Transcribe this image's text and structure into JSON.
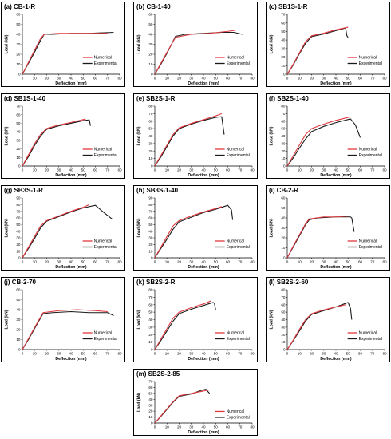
{
  "common": {
    "xlabel": "Deflection (mm)",
    "ylabel": "Load (kN)",
    "xticks": [
      0,
      10,
      20,
      30,
      40,
      50,
      60,
      70,
      80
    ],
    "legend": [
      "Numerical",
      "Experimental"
    ],
    "colors": {
      "numerical": "#e0393e",
      "experimental": "#1a1a1a"
    }
  },
  "chart_data": [
    {
      "title": "(a) CB-1-R",
      "type": "line",
      "xlim": [
        0,
        80
      ],
      "ylim": [
        0,
        60
      ],
      "yticks": [
        0,
        10,
        20,
        30,
        40,
        50,
        60
      ],
      "series": [
        {
          "name": "Numerical",
          "x": [
            0,
            5,
            10,
            15,
            18,
            30,
            45,
            60,
            70
          ],
          "y": [
            0,
            12,
            24,
            36,
            40,
            41,
            41,
            41,
            41
          ]
        },
        {
          "name": "Experimental",
          "x": [
            0,
            5,
            10,
            15,
            18,
            25,
            40,
            55,
            75
          ],
          "y": [
            0,
            11,
            22,
            34,
            40,
            40,
            41,
            41,
            42
          ]
        }
      ]
    },
    {
      "title": "(b) CB-1-40",
      "type": "line",
      "xlim": [
        0,
        80
      ],
      "ylim": [
        0,
        60
      ],
      "yticks": [
        0,
        10,
        20,
        30,
        40,
        50,
        60
      ],
      "series": [
        {
          "name": "Numerical",
          "x": [
            0,
            5,
            10,
            17,
            30,
            45,
            60,
            66
          ],
          "y": [
            0,
            11,
            22,
            37,
            40,
            41,
            43,
            44
          ]
        },
        {
          "name": "Experimental",
          "x": [
            0,
            5,
            10,
            17,
            25,
            40,
            55,
            65,
            72
          ],
          "y": [
            0,
            10,
            21,
            38,
            40,
            41,
            42,
            42,
            40
          ]
        }
      ]
    },
    {
      "title": "(c) SB1S-1-R",
      "type": "line",
      "xlim": [
        0,
        80
      ],
      "ylim": [
        0,
        70
      ],
      "yticks": [
        0,
        10,
        20,
        30,
        40,
        50,
        60,
        70
      ],
      "series": [
        {
          "name": "Numerical",
          "x": [
            0,
            5,
            10,
            15,
            20,
            30,
            40,
            50
          ],
          "y": [
            0,
            12,
            25,
            38,
            45,
            48,
            52,
            55
          ]
        },
        {
          "name": "Experimental",
          "x": [
            0,
            5,
            10,
            15,
            20,
            30,
            40,
            48,
            49,
            50
          ],
          "y": [
            0,
            11,
            24,
            36,
            44,
            47,
            51,
            54,
            45,
            43
          ]
        }
      ]
    },
    {
      "title": "(d) SB1S-1-40",
      "type": "line",
      "xlim": [
        0,
        80
      ],
      "ylim": [
        0,
        70
      ],
      "yticks": [
        0,
        10,
        20,
        30,
        40,
        50,
        60,
        70
      ],
      "series": [
        {
          "name": "Numerical",
          "x": [
            0,
            5,
            10,
            15,
            20,
            30,
            40,
            52
          ],
          "y": [
            0,
            13,
            26,
            37,
            44,
            48,
            51,
            55
          ]
        },
        {
          "name": "Experimental",
          "x": [
            0,
            5,
            10,
            15,
            20,
            30,
            40,
            50,
            55,
            56
          ],
          "y": [
            0,
            11,
            24,
            35,
            43,
            47,
            50,
            53,
            54,
            47
          ]
        }
      ]
    },
    {
      "title": "(e) SB2S-1-R",
      "type": "line",
      "xlim": [
        0,
        80
      ],
      "ylim": [
        0,
        80
      ],
      "yticks": [
        0,
        10,
        20,
        30,
        40,
        50,
        60,
        70,
        80
      ],
      "series": [
        {
          "name": "Numerical",
          "x": [
            0,
            5,
            10,
            15,
            20,
            30,
            40,
            50,
            55
          ],
          "y": [
            0,
            14,
            28,
            42,
            51,
            57,
            62,
            67,
            70
          ]
        },
        {
          "name": "Experimental",
          "x": [
            0,
            5,
            10,
            15,
            20,
            30,
            40,
            50,
            55,
            57
          ],
          "y": [
            0,
            12,
            26,
            40,
            50,
            56,
            61,
            65,
            66,
            42
          ]
        }
      ]
    },
    {
      "title": "(f) SB2S-1-40",
      "type": "line",
      "xlim": [
        0,
        80
      ],
      "ylim": [
        0,
        80
      ],
      "yticks": [
        0,
        10,
        20,
        30,
        40,
        50,
        60,
        70,
        80
      ],
      "series": [
        {
          "name": "Numerical",
          "x": [
            0,
            5,
            10,
            15,
            20,
            30,
            40,
            50,
            52
          ],
          "y": [
            0,
            14,
            28,
            42,
            50,
            56,
            61,
            65,
            66
          ]
        },
        {
          "name": "Experimental",
          "x": [
            0,
            5,
            10,
            15,
            20,
            30,
            40,
            52,
            56,
            60
          ],
          "y": [
            0,
            11,
            24,
            36,
            46,
            53,
            58,
            63,
            55,
            38
          ]
        }
      ]
    },
    {
      "title": "(g) SB3S-1-R",
      "type": "line",
      "xlim": [
        0,
        80
      ],
      "ylim": [
        0,
        90
      ],
      "yticks": [
        0,
        10,
        20,
        30,
        40,
        50,
        60,
        70,
        80,
        90
      ],
      "series": [
        {
          "name": "Numerical",
          "x": [
            0,
            5,
            10,
            15,
            20,
            30,
            40,
            50,
            55
          ],
          "y": [
            0,
            16,
            32,
            48,
            56,
            63,
            70,
            76,
            80
          ]
        },
        {
          "name": "Experimental",
          "x": [
            0,
            5,
            10,
            15,
            20,
            30,
            40,
            50,
            60,
            67,
            74
          ],
          "y": [
            0,
            14,
            29,
            45,
            55,
            62,
            69,
            75,
            79,
            68,
            58
          ]
        }
      ]
    },
    {
      "title": "(h) SB3S-1-40",
      "type": "line",
      "xlim": [
        0,
        80
      ],
      "ylim": [
        0,
        90
      ],
      "yticks": [
        0,
        10,
        20,
        30,
        40,
        50,
        60,
        70,
        80,
        90
      ],
      "series": [
        {
          "name": "Numerical",
          "x": [
            0,
            5,
            10,
            15,
            20,
            30,
            40,
            50,
            55
          ],
          "y": [
            0,
            16,
            32,
            48,
            56,
            63,
            69,
            74,
            77
          ]
        },
        {
          "name": "Experimental",
          "x": [
            0,
            5,
            10,
            15,
            20,
            30,
            40,
            50,
            60,
            63,
            64
          ],
          "y": [
            0,
            14,
            28,
            43,
            54,
            61,
            68,
            73,
            79,
            72,
            57
          ]
        }
      ]
    },
    {
      "title": "(i) CB-2-R",
      "type": "line",
      "xlim": [
        0,
        80
      ],
      "ylim": [
        0,
        60
      ],
      "yticks": [
        0,
        10,
        20,
        30,
        40,
        50,
        60
      ],
      "series": [
        {
          "name": "Numerical",
          "x": [
            0,
            5,
            10,
            15,
            18,
            30,
            40,
            52
          ],
          "y": [
            0,
            12,
            23,
            34,
            39,
            41,
            41,
            42
          ]
        },
        {
          "name": "Experimental",
          "x": [
            0,
            5,
            10,
            15,
            18,
            25,
            40,
            52,
            53,
            55
          ],
          "y": [
            0,
            11,
            22,
            33,
            38,
            40,
            41,
            41,
            40,
            26
          ]
        }
      ]
    },
    {
      "title": "(j) CB-2-70",
      "type": "line",
      "xlim": [
        0,
        80
      ],
      "ylim": [
        0,
        60
      ],
      "yticks": [
        0,
        10,
        20,
        30,
        40,
        50,
        60
      ],
      "series": [
        {
          "name": "Numerical",
          "x": [
            0,
            5,
            10,
            17,
            30,
            45,
            60,
            70
          ],
          "y": [
            0,
            11,
            22,
            37,
            39,
            40,
            39,
            38
          ]
        },
        {
          "name": "Experimental",
          "x": [
            0,
            5,
            10,
            17,
            25,
            40,
            55,
            70,
            75
          ],
          "y": [
            0,
            10,
            21,
            36,
            37,
            38,
            37,
            37,
            34
          ]
        }
      ]
    },
    {
      "title": "(k) SB2S-2-R",
      "type": "line",
      "xlim": [
        0,
        80
      ],
      "ylim": [
        0,
        80
      ],
      "yticks": [
        0,
        10,
        20,
        30,
        40,
        50,
        60,
        70,
        80
      ],
      "series": [
        {
          "name": "Numerical",
          "x": [
            0,
            5,
            10,
            15,
            20,
            30,
            40,
            46
          ],
          "y": [
            0,
            14,
            28,
            42,
            50,
            56,
            61,
            65
          ]
        },
        {
          "name": "Experimental",
          "x": [
            0,
            5,
            10,
            15,
            20,
            30,
            40,
            48,
            49,
            50
          ],
          "y": [
            0,
            12,
            25,
            38,
            48,
            54,
            59,
            63,
            62,
            53
          ]
        }
      ]
    },
    {
      "title": "(l) SB2S-2-60",
      "type": "line",
      "xlim": [
        0,
        80
      ],
      "ylim": [
        0,
        80
      ],
      "yticks": [
        0,
        10,
        20,
        30,
        40,
        50,
        60,
        70,
        80
      ],
      "series": [
        {
          "name": "Numerical",
          "x": [
            0,
            5,
            10,
            15,
            20,
            30,
            40,
            48
          ],
          "y": [
            0,
            13,
            27,
            40,
            48,
            53,
            57,
            60
          ]
        },
        {
          "name": "Experimental",
          "x": [
            0,
            5,
            10,
            15,
            20,
            30,
            40,
            50,
            52,
            53
          ],
          "y": [
            0,
            12,
            25,
            38,
            47,
            52,
            57,
            63,
            55,
            40
          ]
        }
      ]
    },
    {
      "title": "(m) SB2S-2-85",
      "type": "line",
      "xlim": [
        0,
        80
      ],
      "ylim": [
        0,
        70
      ],
      "yticks": [
        0,
        10,
        20,
        30,
        40,
        50,
        60,
        70
      ],
      "series": [
        {
          "name": "Numerical",
          "x": [
            0,
            5,
            10,
            15,
            20,
            30,
            40,
            45
          ],
          "y": [
            0,
            12,
            24,
            36,
            46,
            50,
            54,
            56
          ]
        },
        {
          "name": "Experimental",
          "x": [
            0,
            5,
            10,
            15,
            20,
            30,
            38,
            42,
            45
          ],
          "y": [
            0,
            11,
            23,
            35,
            45,
            49,
            55,
            57,
            50
          ]
        }
      ]
    }
  ]
}
